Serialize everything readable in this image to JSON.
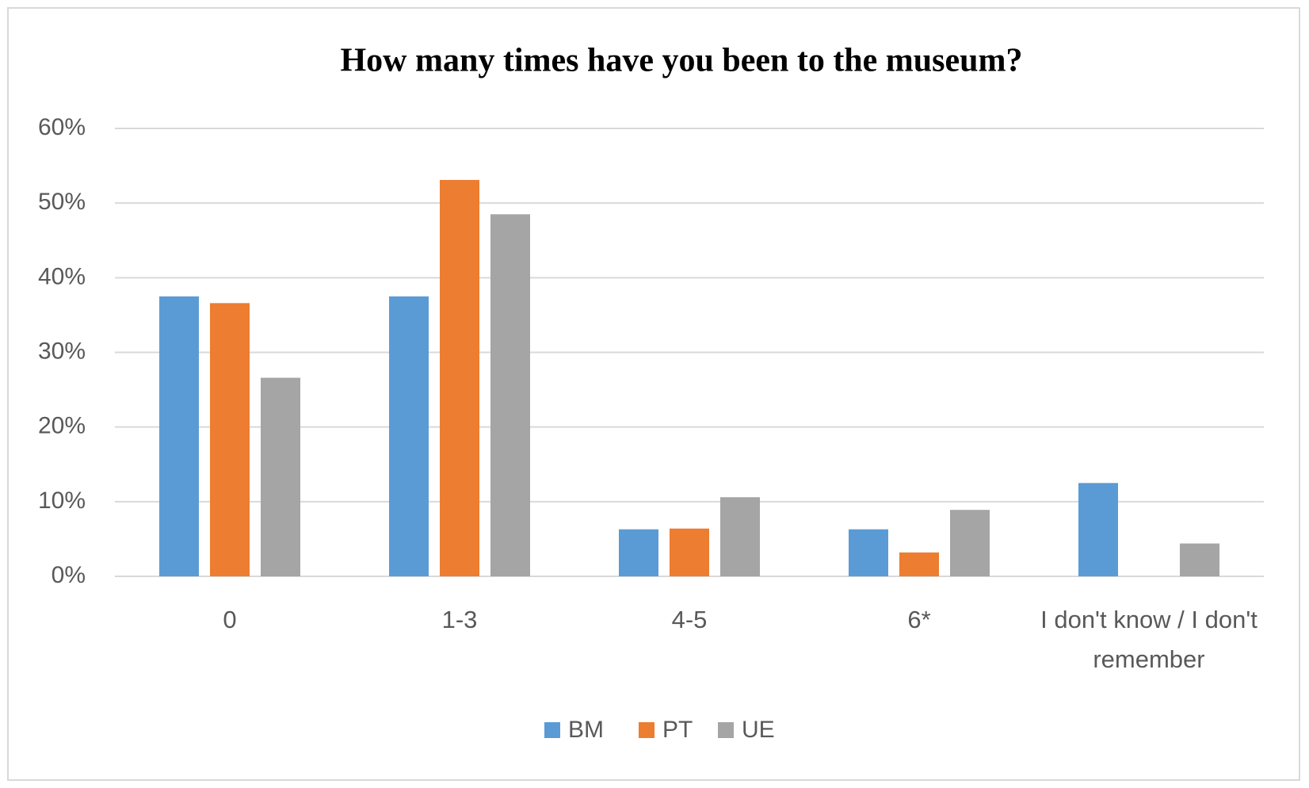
{
  "chart_data": {
    "type": "bar",
    "title": "How many  times have you been to the museum?",
    "categories": [
      "0",
      "1-3",
      "4-5",
      "6*",
      "I don't know / I don't remember"
    ],
    "series": [
      {
        "name": "BM",
        "color": "#5b9bd5",
        "values": [
          37.5,
          37.5,
          6.3,
          6.3,
          12.5
        ]
      },
      {
        "name": "PT",
        "color": "#ed7d31",
        "values": [
          36.6,
          53.1,
          6.4,
          3.2,
          0
        ]
      },
      {
        "name": "UE",
        "color": "#a5a5a5",
        "values": [
          26.6,
          48.5,
          10.6,
          8.9,
          4.4
        ]
      }
    ],
    "ylim": [
      0,
      60
    ],
    "yticks": [
      {
        "value": 0,
        "label": "0%"
      },
      {
        "value": 10,
        "label": "10%"
      },
      {
        "value": 20,
        "label": "20%"
      },
      {
        "value": 30,
        "label": "30%"
      },
      {
        "value": 40,
        "label": "40%"
      },
      {
        "value": 50,
        "label": "50%"
      },
      {
        "value": 60,
        "label": "60%"
      }
    ],
    "grid": true,
    "legend": "bottom"
  }
}
